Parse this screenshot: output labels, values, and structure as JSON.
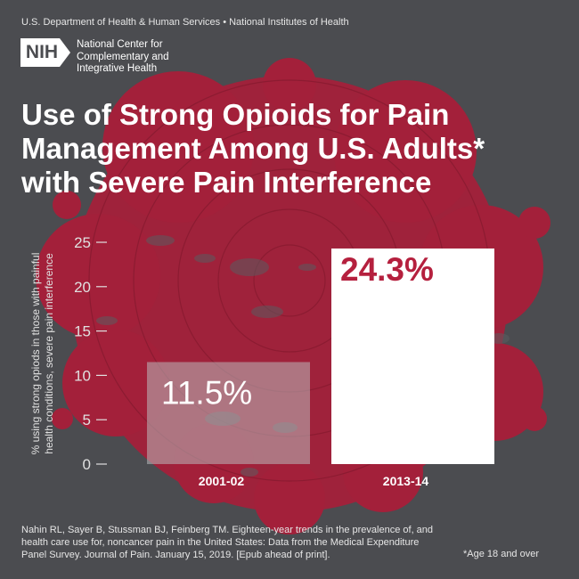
{
  "header": {
    "agency_line": "U.S. Department of Health & Human Services • National Institutes of Health",
    "logo_text": "NIH",
    "center_name_lines": [
      "National Center for",
      "Complementary and",
      "Integrative Health"
    ]
  },
  "title_lines": [
    "Use of Strong Opioids for Pain",
    "Management Among U.S. Adults*",
    "with Severe Pain Interference"
  ],
  "colors": {
    "background": "#4b4c50",
    "splatter": "#a3203a",
    "bar_2001": "#b9b9bb",
    "bar_2013": "#ffffff",
    "label_2013": "#b5203e",
    "axis": "#e0e0e0"
  },
  "chart_data": {
    "type": "bar",
    "categories": [
      "2001-02",
      "2013-14"
    ],
    "values": [
      11.5,
      24.3
    ],
    "data_labels": [
      "11.5%",
      "24.3%"
    ],
    "ylabel_lines": [
      "% using strong opiods in those with painful",
      "health conditions, severe pain interference"
    ],
    "ylim": [
      0,
      25
    ],
    "yticks": [
      "0",
      "5",
      "10",
      "15",
      "20",
      "25"
    ],
    "grid": false,
    "legend": "none"
  },
  "citation_lines": [
    "Nahin RL, Sayer B, Stussman BJ, Feinberg TM. Eighteen-year trends in the prevalence of, and",
    "health care use for, noncancer pain in the United States: Data from the Medical Expenditure",
    "Panel Survey. Journal of Pain. January 15, 2019. [Epub ahead of print]."
  ],
  "footnote": "*Age 18 and over"
}
